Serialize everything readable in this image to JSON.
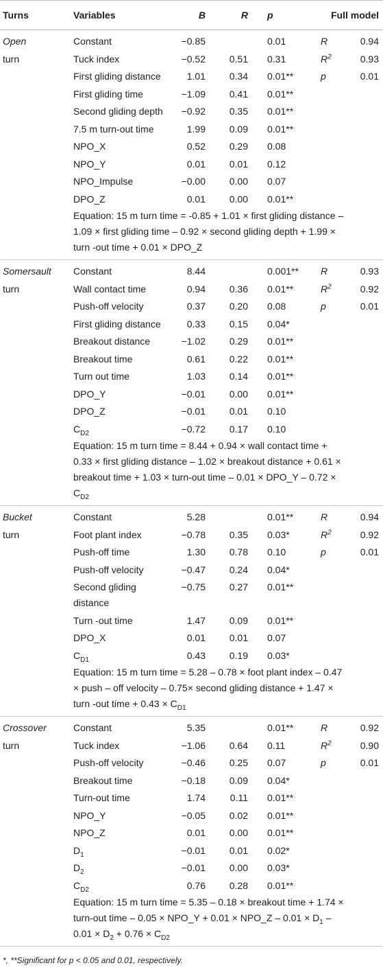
{
  "header": [
    "Turns",
    "Variables",
    "B",
    "R",
    "p",
    "Full model"
  ],
  "groups": [
    {
      "turn": [
        "Open",
        "turn"
      ],
      "rows": [
        {
          "variable": "Constant",
          "B": "−0.85",
          "p": "0.01",
          "model_stat": "R",
          "model_value": "0.94"
        },
        {
          "variable": "Tuck index",
          "B": "−0.52",
          "R": "0.51",
          "p": "0.31",
          "model_stat": {
            "base": "R",
            "sup": "2"
          },
          "model_value": "0.93"
        },
        {
          "variable": "First gliding distance",
          "B": "1.01",
          "R": "0.34",
          "p": "0.01**",
          "model_stat": "p",
          "model_value": "0.01"
        },
        {
          "variable": "First gliding time",
          "B": "−1.09",
          "R": "0.41",
          "p": "0.01**"
        },
        {
          "variable": "Second gliding depth",
          "B": "−0.92",
          "R": "0.35",
          "p": "0.01**"
        },
        {
          "variable": "7.5 m turn-out time",
          "B": "1.99",
          "R": "0.09",
          "p": "0.01**"
        },
        {
          "variable": "NPO_X",
          "B": "0.52",
          "R": "0.29",
          "p": "0.08"
        },
        {
          "variable": "NPO_Y",
          "B": "0.01",
          "R": "0.01",
          "p": "0.12"
        },
        {
          "variable": "NPO_Impulse",
          "B": "−0.00",
          "R": "0.00",
          "p": "0.07"
        },
        {
          "variable": "DPO_Z",
          "B": "0.01",
          "R": "0.00",
          "p": "0.01**"
        }
      ],
      "equation": [
        [
          "Equation: 15 m turn time = -0.85 + 1.01 × first gliding distance –"
        ],
        [
          "1.09 × first gliding time – 0.92 × second gliding depth + 1.99 ×"
        ],
        [
          "turn -out time + 0.01 × DPO_Z"
        ]
      ]
    },
    {
      "turn": [
        "Somersault",
        "turn"
      ],
      "rows": [
        {
          "variable": "Constant",
          "B": "8.44",
          "p": "0.001**",
          "model_stat": "R",
          "model_value": "0.93"
        },
        {
          "variable": "Wall contact time",
          "B": "0.94",
          "R": "0.36",
          "p": "0.01**",
          "model_stat": {
            "base": "R",
            "sup": "2"
          },
          "model_value": "0.92"
        },
        {
          "variable": "Push-off velocity",
          "B": "0.37",
          "R": "0.20",
          "p": "0.08",
          "model_stat": "p",
          "model_value": "0.01"
        },
        {
          "variable": "First gliding distance",
          "B": "0.33",
          "R": "0.15",
          "p": "0.04*"
        },
        {
          "variable": "Breakout distance",
          "B": "−1.02",
          "R": "0.29",
          "p": "0.01**"
        },
        {
          "variable": "Breakout time",
          "B": "0.61",
          "R": "0.22",
          "p": "0.01**"
        },
        {
          "variable": "Turn out time",
          "B": "1.03",
          "R": "0.14",
          "p": "0.01**"
        },
        {
          "variable": "DPO_Y",
          "B": "−0.01",
          "R": "0.00",
          "p": "0.01**"
        },
        {
          "variable": "DPO_Z",
          "B": "−0.01",
          "R": "0.01",
          "p": "0.10"
        },
        {
          "variable": {
            "base": "C",
            "sub": "D2"
          },
          "B": "−0.72",
          "R": "0.17",
          "p": "0.10"
        }
      ],
      "equation": [
        [
          "Equation: 15 m turn time = 8.44 + 0.94 × wall contact time +"
        ],
        [
          "0.33 × first gliding distance – 1.02 × breakout distance + 0.61 ×"
        ],
        [
          "breakout time + 1.03 × turn-out time – 0.01 × DPO_Y – 0.72 ×"
        ],
        [
          "C",
          {
            "sub": "D2"
          }
        ]
      ]
    },
    {
      "turn": [
        "Bucket",
        "turn"
      ],
      "rows": [
        {
          "variable": "Constant",
          "B": "5.28",
          "p": "0.01**",
          "model_stat": "R",
          "model_value": "0.94"
        },
        {
          "variable": "Foot plant index",
          "B": "−0.78",
          "R": "0.35",
          "p": "0.03*",
          "model_stat": {
            "base": "R",
            "sup": "2"
          },
          "model_value": "0.92"
        },
        {
          "variable": "Push-off time",
          "B": "1.30",
          "R": "0.78",
          "p": "0.10",
          "model_stat": "p",
          "model_value": "0.01"
        },
        {
          "variable": "Push-off velocity",
          "B": "−0.47",
          "R": "0.24",
          "p": "0.04*"
        },
        {
          "variable": {
            "lines": [
              "Second gliding",
              "distance"
            ]
          },
          "B": "−0.75",
          "R": "0.27",
          "p": "0.01**"
        },
        {
          "variable": "Turn -out time",
          "B": "1.47",
          "R": "0.09",
          "p": "0.01**"
        },
        {
          "variable": "DPO_X",
          "B": "0.01",
          "R": "0.01",
          "p": "0.07"
        },
        {
          "variable": {
            "base": "C",
            "sub": "D1"
          },
          "B": "0.43",
          "R": "0.19",
          "p": "0.03*"
        }
      ],
      "equation": [
        [
          "Equation: 15 m turn time = 5.28 – 0.78 × foot plant index – 0.47"
        ],
        [
          "× push – off velocity – 0.75× second gliding distance + 1.47 ×"
        ],
        [
          "turn -out time + 0.43 × C",
          {
            "sub": "D1"
          }
        ]
      ]
    },
    {
      "turn": [
        "Crossover",
        "turn"
      ],
      "rows": [
        {
          "variable": "Constant",
          "B": "5.35",
          "p": "0.01**",
          "model_stat": "R",
          "model_value": "0.92"
        },
        {
          "variable": "Tuck index",
          "B": "−1.06",
          "R": "0.64",
          "p": "0.11",
          "model_stat": {
            "base": "R",
            "sup": "2"
          },
          "model_value": "0.90"
        },
        {
          "variable": "Push-off velocity",
          "B": "−0.46",
          "R": "0.25",
          "p": "0.07",
          "model_stat": "p",
          "model_value": "0.01"
        },
        {
          "variable": "Breakout time",
          "B": "−0.18",
          "R": "0.09",
          "p": "0.04*"
        },
        {
          "variable": "Turn-out time",
          "B": "1.74",
          "R": "0.11",
          "p": "0.01**"
        },
        {
          "variable": "NPO_Y",
          "B": "−0.05",
          "R": "0.02",
          "p": "0.01**"
        },
        {
          "variable": "NPO_Z",
          "B": "0.01",
          "R": "0.00",
          "p": "0.01**"
        },
        {
          "variable": {
            "base": "D",
            "sub": "1"
          },
          "B": "−0.01",
          "R": "0.01",
          "p": "0.02*"
        },
        {
          "variable": {
            "base": "D",
            "sub": "2"
          },
          "B": "−0.01",
          "R": "0.00",
          "p": "0.03*"
        },
        {
          "variable": {
            "base": "C",
            "sub": "D2"
          },
          "B": "0.76",
          "R": "0.28",
          "p": "0.01**"
        }
      ],
      "equation": [
        [
          "Equation: 15 m turn time = 5.35 – 0.18 × breakout time + 1.74 ×"
        ],
        [
          "turn-out time – 0.05 × NPO_Y + 0.01 × NPO_Z – 0.01 × D",
          {
            "sub": "1"
          },
          " –"
        ],
        [
          "0.01 × D",
          {
            "sub": "2"
          },
          " + 0.76 × C",
          {
            "sub": "D2"
          }
        ]
      ]
    }
  ],
  "footnote": "*, **Significant for p < 0.05 and 0.01, respectively."
}
